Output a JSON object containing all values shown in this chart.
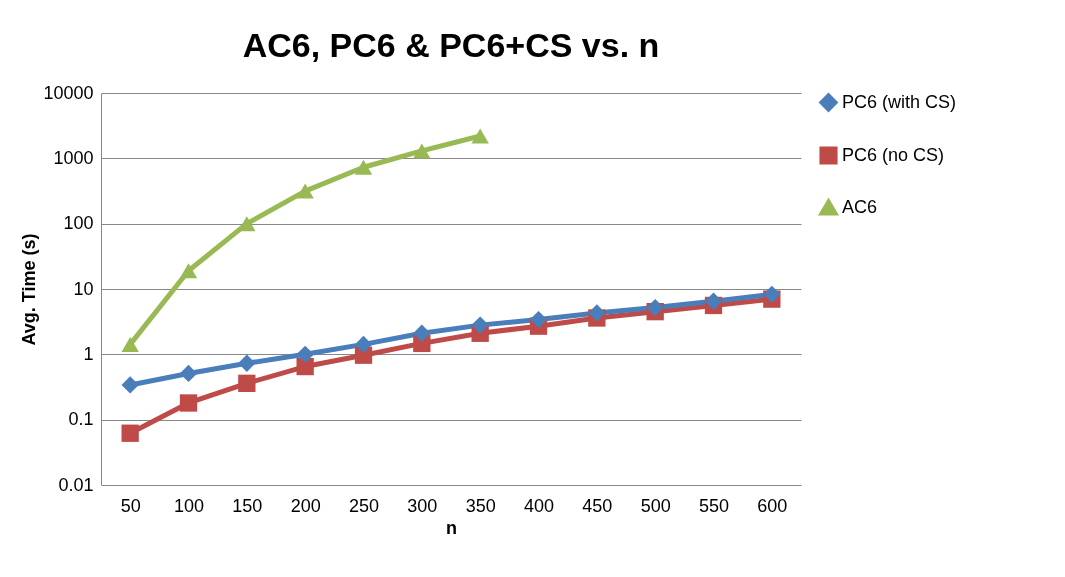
{
  "chart_data": {
    "type": "line",
    "title": "AC6, PC6 & PC6+CS vs. n",
    "xlabel": "n",
    "ylabel": "Avg. Time (s)",
    "categories": [
      "50",
      "100",
      "150",
      "200",
      "250",
      "300",
      "350",
      "400",
      "450",
      "500",
      "550",
      "600"
    ],
    "series": [
      {
        "name": "PC6 (with CS)",
        "color": "#4a7ebb",
        "marker": "diamond",
        "values": [
          0.34,
          0.51,
          0.73,
          1.0,
          1.42,
          2.1,
          2.8,
          3.4,
          4.3,
          5.2,
          6.5,
          8.3
        ]
      },
      {
        "name": "PC6 (no CS)",
        "color": "#be4b48",
        "marker": "square",
        "values": [
          0.062,
          0.18,
          0.36,
          0.65,
          0.97,
          1.47,
          2.1,
          2.7,
          3.6,
          4.5,
          5.6,
          7.0
        ]
      },
      {
        "name": "AC6",
        "color": "#98b954",
        "marker": "triangle",
        "values": [
          1.42,
          19,
          100,
          315,
          730,
          1300,
          2200,
          null,
          null,
          null,
          null,
          null
        ]
      }
    ],
    "log": true,
    "ylim": [
      0.01,
      10000
    ],
    "yticks": [
      0.01,
      0.1,
      1,
      10,
      100,
      1000,
      10000
    ],
    "grid": "y",
    "legend": "right"
  }
}
